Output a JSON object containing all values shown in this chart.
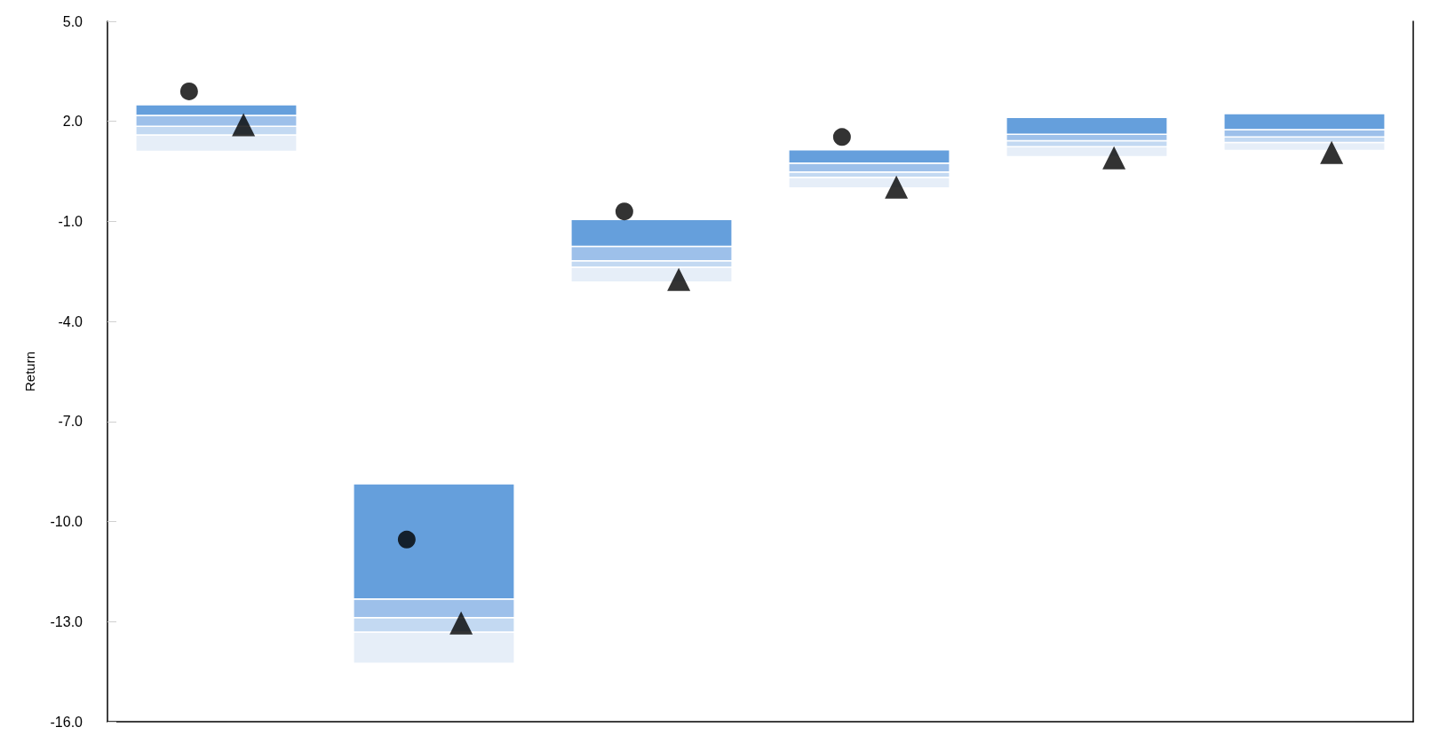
{
  "chart_data": {
    "type": "bar",
    "ylabel": "Return",
    "categories": [
      null,
      null,
      null,
      null,
      null,
      null
    ],
    "series": [
      {
        "color": "#e6eef8",
        "base": [
          1.1,
          -14.25,
          -2.82,
          0.0,
          0.94,
          1.13
        ],
        "values": [
          0.49,
          0.94,
          0.45,
          0.32,
          0.3,
          0.24
        ]
      },
      {
        "color": "#c3d9f2",
        "base": [
          1.59,
          -13.31,
          -2.37,
          0.32,
          1.24,
          1.37
        ],
        "values": [
          0.26,
          0.43,
          0.19,
          0.16,
          0.18,
          0.16
        ]
      },
      {
        "color": "#9dc0ea",
        "base": [
          1.85,
          -12.88,
          -2.18,
          0.48,
          1.42,
          1.53
        ],
        "values": [
          0.33,
          0.56,
          0.43,
          0.27,
          0.19,
          0.22
        ]
      },
      {
        "color": "#659fdc",
        "base": [
          2.18,
          -12.32,
          -1.75,
          0.75,
          1.61,
          1.75
        ],
        "values": [
          0.32,
          3.45,
          0.81,
          0.4,
          0.51,
          0.48
        ]
      },
      {
        "type": "scatter",
        "marker": "circle",
        "color": "#000000",
        "values": [
          2.9,
          -10.54,
          -0.7,
          1.53,
          null,
          null
        ]
      },
      {
        "type": "scatter",
        "marker": "triangle",
        "color": "#000000",
        "values": [
          1.9,
          -13.04,
          -2.74,
          0.03,
          0.91,
          1.07
        ]
      }
    ],
    "ylim": [
      -16,
      5
    ],
    "yticks": [
      {
        "value": 5,
        "label": "5.0"
      },
      {
        "value": 2,
        "label": "2.0"
      },
      {
        "value": -1,
        "label": "-1.0"
      },
      {
        "value": -4,
        "label": "-4.0"
      },
      {
        "value": -7,
        "label": "-7.0"
      },
      {
        "value": -10,
        "label": "-10.0"
      },
      {
        "value": -13,
        "label": "-13.0"
      },
      {
        "value": -16,
        "label": "-16.0"
      }
    ],
    "grid": false
  }
}
